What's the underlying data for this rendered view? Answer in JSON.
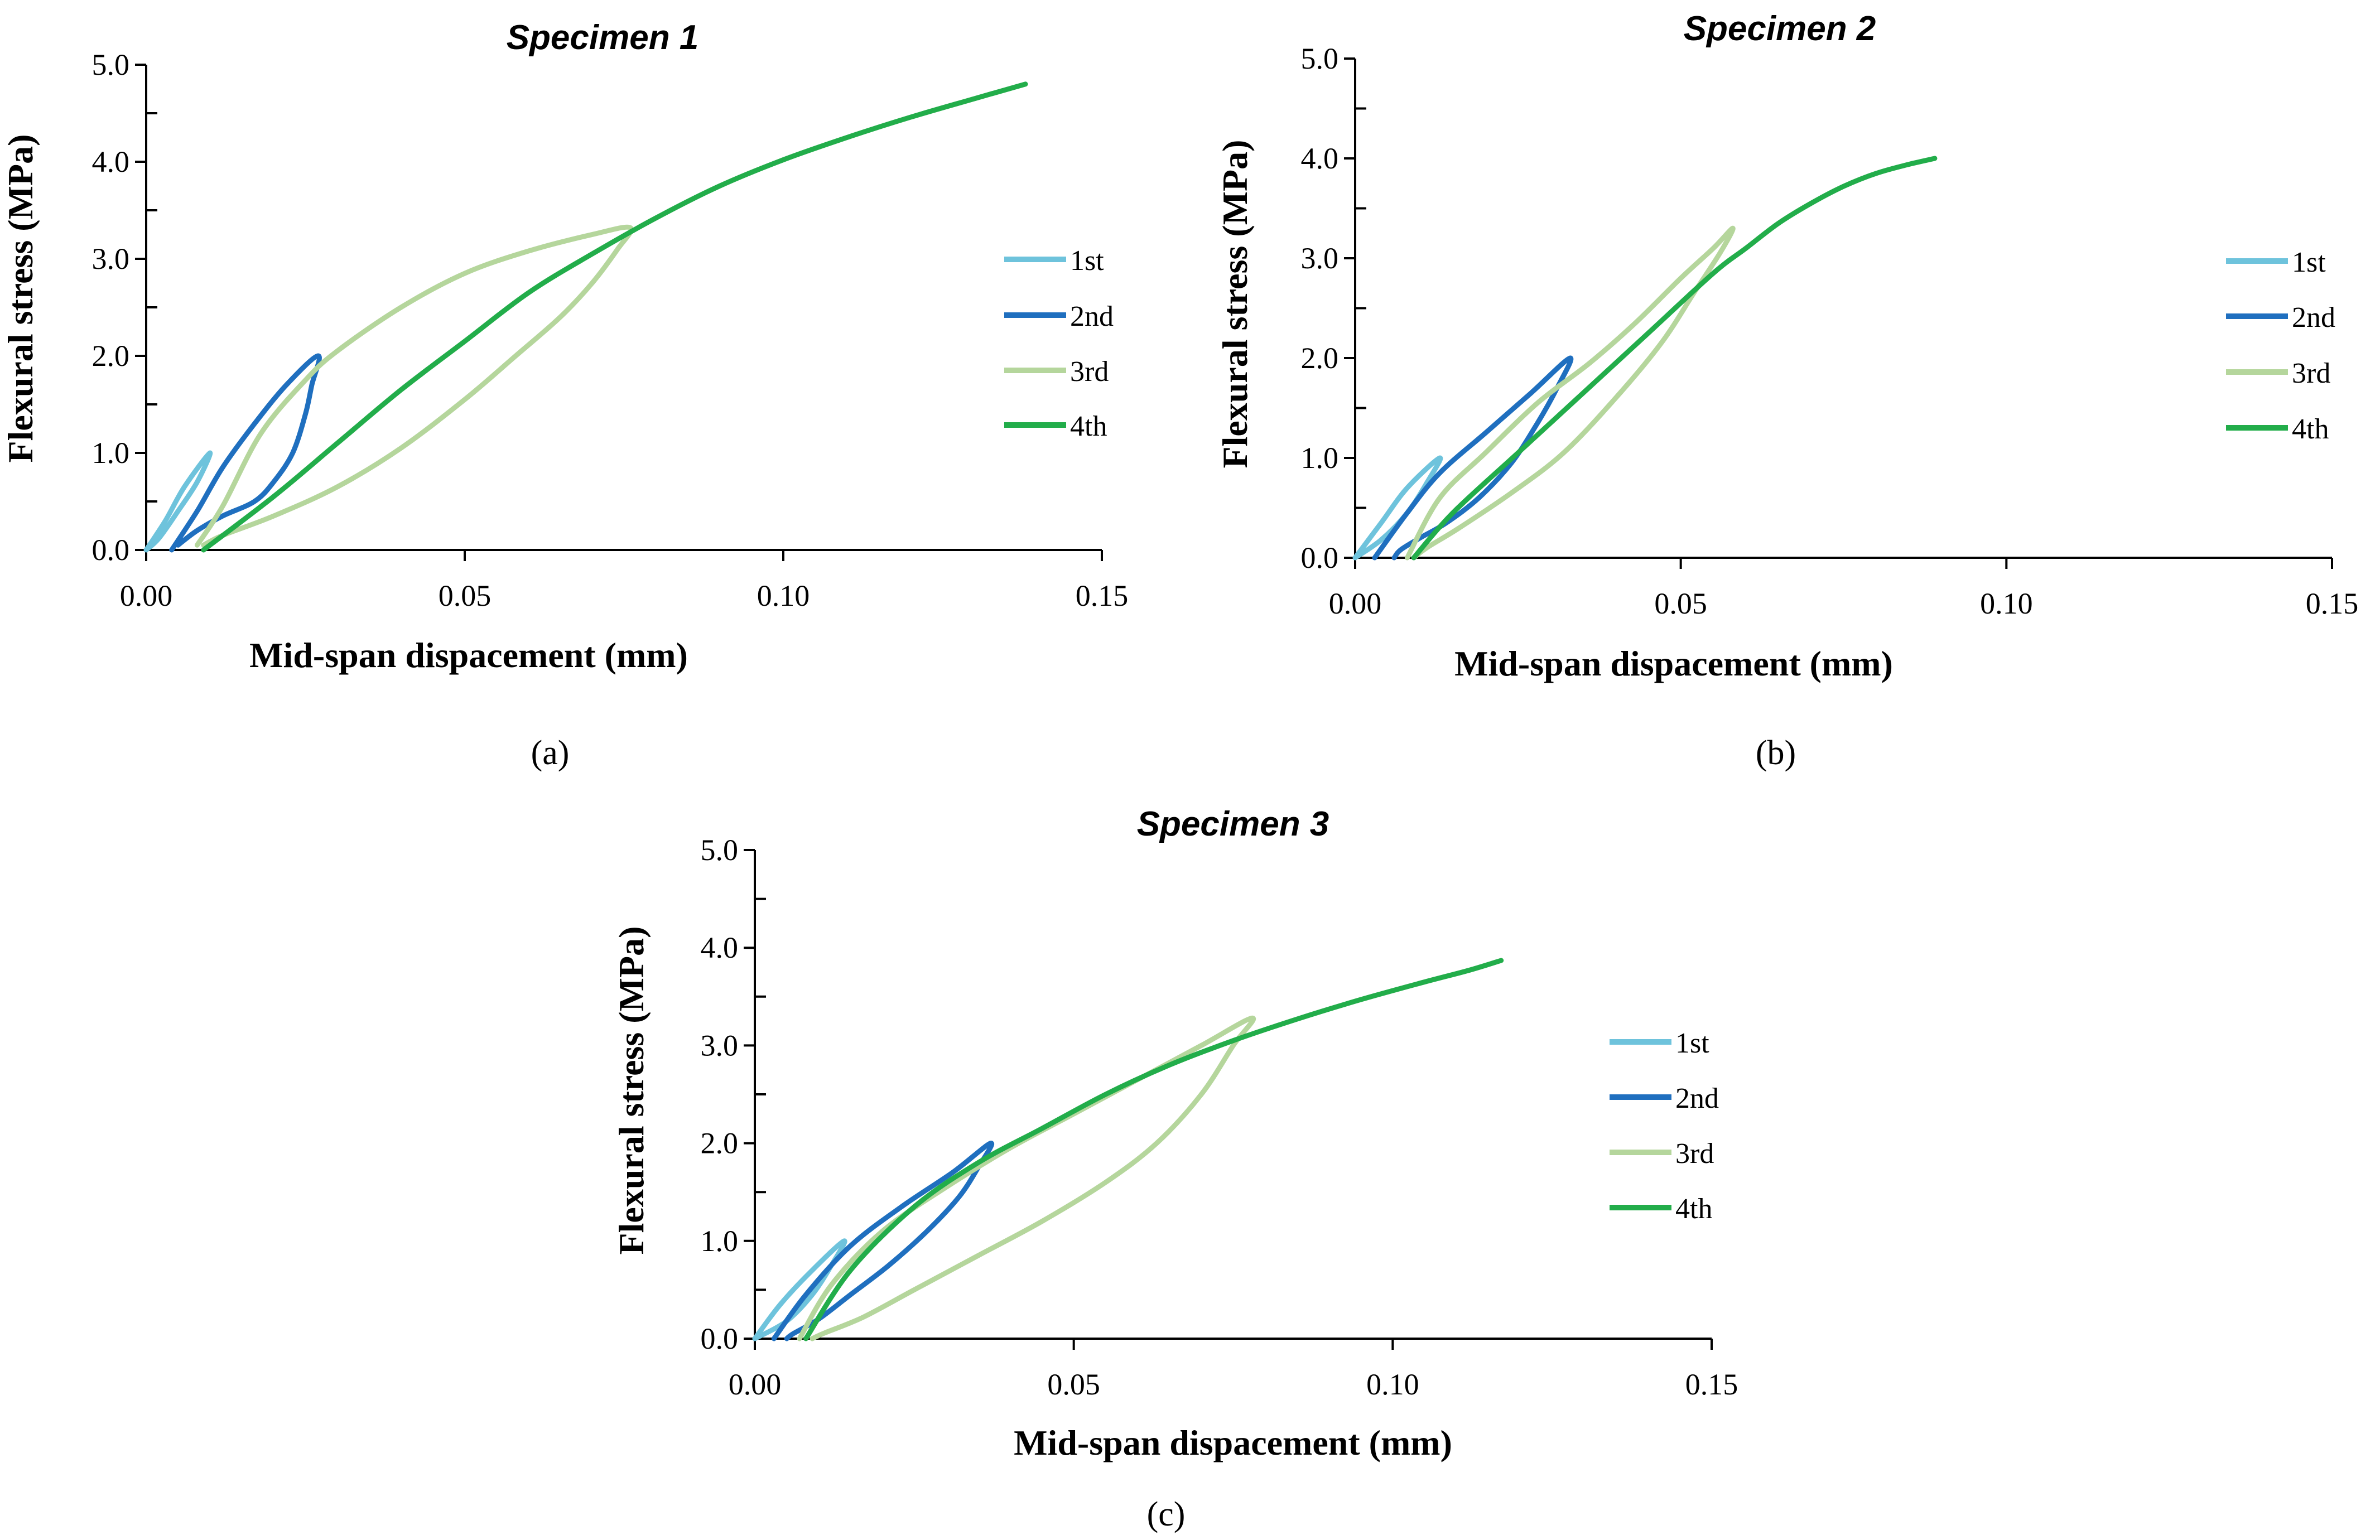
{
  "figure": {
    "panel_labels": [
      "(a)",
      "(b)",
      "(c)"
    ]
  },
  "chart_data": [
    {
      "type": "line",
      "title": "Specimen 1",
      "xlabel": "Mid-span dispacement (mm)",
      "ylabel": "Flexural stress (MPa)",
      "xlim": [
        0,
        0.15
      ],
      "ylim": [
        0,
        5
      ],
      "xticks": [
        "0.00",
        "0.05",
        "0.10",
        "0.15"
      ],
      "yticks": [
        "0.0",
        "1.0",
        "2.0",
        "3.0",
        "4.0",
        "5.0"
      ],
      "grid": false,
      "legend_position": "right",
      "series": [
        {
          "name": "1st",
          "color": "#6ec3dc",
          "points": [
            [
              0,
              0
            ],
            [
              0.003,
              0.3
            ],
            [
              0.006,
              0.65
            ],
            [
              0.01,
              1.0
            ],
            [
              0.008,
              0.7
            ],
            [
              0.005,
              0.4
            ],
            [
              0.002,
              0.12
            ],
            [
              0,
              0
            ]
          ]
        },
        {
          "name": "2nd",
          "color": "#1f6fbf",
          "points": [
            [
              0.004,
              0
            ],
            [
              0.008,
              0.4
            ],
            [
              0.012,
              0.85
            ],
            [
              0.017,
              1.3
            ],
            [
              0.022,
              1.7
            ],
            [
              0.027,
              2.0
            ],
            [
              0.026,
              1.7
            ],
            [
              0.025,
              1.4
            ],
            [
              0.023,
              1.0
            ],
            [
              0.02,
              0.7
            ],
            [
              0.017,
              0.5
            ],
            [
              0.012,
              0.35
            ],
            [
              0.008,
              0.2
            ],
            [
              0.005,
              0.05
            ]
          ]
        },
        {
          "name": "3rd",
          "color": "#b5d69c",
          "points": [
            [
              0.008,
              0.05
            ],
            [
              0.012,
              0.45
            ],
            [
              0.018,
              1.2
            ],
            [
              0.025,
              1.75
            ],
            [
              0.03,
              2.05
            ],
            [
              0.04,
              2.5
            ],
            [
              0.05,
              2.85
            ],
            [
              0.06,
              3.08
            ],
            [
              0.07,
              3.25
            ],
            [
              0.076,
              3.32
            ],
            [
              0.074,
              3.1
            ],
            [
              0.07,
              2.75
            ],
            [
              0.065,
              2.4
            ],
            [
              0.058,
              2.0
            ],
            [
              0.05,
              1.55
            ],
            [
              0.04,
              1.05
            ],
            [
              0.03,
              0.65
            ],
            [
              0.02,
              0.35
            ],
            [
              0.012,
              0.15
            ],
            [
              0.009,
              0.05
            ]
          ]
        },
        {
          "name": "4th",
          "color": "#22ad4a",
          "points": [
            [
              0.009,
              0
            ],
            [
              0.02,
              0.55
            ],
            [
              0.03,
              1.1
            ],
            [
              0.04,
              1.65
            ],
            [
              0.05,
              2.15
            ],
            [
              0.06,
              2.65
            ],
            [
              0.07,
              3.05
            ],
            [
              0.08,
              3.42
            ],
            [
              0.09,
              3.75
            ],
            [
              0.1,
              4.02
            ],
            [
              0.11,
              4.25
            ],
            [
              0.12,
              4.46
            ],
            [
              0.13,
              4.65
            ],
            [
              0.138,
              4.8
            ]
          ]
        }
      ]
    },
    {
      "type": "line",
      "title": "Specimen 2",
      "xlabel": "Mid-span dispacement (mm)",
      "ylabel": "Flexural stress (MPa)",
      "xlim": [
        0,
        0.15
      ],
      "ylim": [
        0,
        5
      ],
      "xticks": [
        "0.00",
        "0.05",
        "0.10",
        "0.15"
      ],
      "yticks": [
        "0.0",
        "1.0",
        "2.0",
        "3.0",
        "4.0",
        "5.0"
      ],
      "grid": false,
      "legend_position": "right",
      "series": [
        {
          "name": "1st",
          "color": "#6ec3dc",
          "points": [
            [
              0,
              0
            ],
            [
              0.004,
              0.35
            ],
            [
              0.008,
              0.7
            ],
            [
              0.013,
              1.0
            ],
            [
              0.011,
              0.75
            ],
            [
              0.008,
              0.45
            ],
            [
              0.004,
              0.18
            ],
            [
              0,
              0
            ]
          ]
        },
        {
          "name": "2nd",
          "color": "#1f6fbf",
          "points": [
            [
              0.003,
              0
            ],
            [
              0.008,
              0.45
            ],
            [
              0.013,
              0.85
            ],
            [
              0.02,
              1.25
            ],
            [
              0.027,
              1.65
            ],
            [
              0.033,
              2.0
            ],
            [
              0.031,
              1.7
            ],
            [
              0.028,
              1.35
            ],
            [
              0.024,
              0.95
            ],
            [
              0.019,
              0.6
            ],
            [
              0.014,
              0.35
            ],
            [
              0.01,
              0.2
            ],
            [
              0.007,
              0.08
            ],
            [
              0.006,
              0
            ]
          ]
        },
        {
          "name": "3rd",
          "color": "#b5d69c",
          "points": [
            [
              0.008,
              0
            ],
            [
              0.013,
              0.6
            ],
            [
              0.02,
              1.05
            ],
            [
              0.028,
              1.55
            ],
            [
              0.036,
              1.95
            ],
            [
              0.043,
              2.35
            ],
            [
              0.05,
              2.8
            ],
            [
              0.055,
              3.1
            ],
            [
              0.058,
              3.3
            ],
            [
              0.056,
              3.05
            ],
            [
              0.052,
              2.65
            ],
            [
              0.047,
              2.15
            ],
            [
              0.04,
              1.6
            ],
            [
              0.032,
              1.05
            ],
            [
              0.024,
              0.65
            ],
            [
              0.016,
              0.3
            ],
            [
              0.011,
              0.1
            ],
            [
              0.009,
              0
            ]
          ]
        },
        {
          "name": "4th",
          "color": "#22ad4a",
          "points": [
            [
              0.009,
              0
            ],
            [
              0.015,
              0.45
            ],
            [
              0.025,
              1.05
            ],
            [
              0.035,
              1.65
            ],
            [
              0.045,
              2.25
            ],
            [
              0.055,
              2.85
            ],
            [
              0.06,
              3.1
            ],
            [
              0.065,
              3.35
            ],
            [
              0.07,
              3.55
            ],
            [
              0.075,
              3.72
            ],
            [
              0.08,
              3.85
            ],
            [
              0.085,
              3.94
            ],
            [
              0.089,
              4.0
            ]
          ]
        }
      ]
    },
    {
      "type": "line",
      "title": "Specimen 3",
      "xlabel": "Mid-span dispacement (mm)",
      "ylabel": "Flexural stress (MPa)",
      "xlim": [
        0,
        0.15
      ],
      "ylim": [
        0,
        5
      ],
      "xticks": [
        "0.00",
        "0.05",
        "0.10",
        "0.15"
      ],
      "yticks": [
        "0.0",
        "1.0",
        "2.0",
        "3.0",
        "4.0",
        "5.0"
      ],
      "grid": false,
      "legend_position": "right",
      "series": [
        {
          "name": "1st",
          "color": "#6ec3dc",
          "points": [
            [
              0,
              0
            ],
            [
              0.004,
              0.35
            ],
            [
              0.009,
              0.7
            ],
            [
              0.014,
              1.0
            ],
            [
              0.012,
              0.75
            ],
            [
              0.009,
              0.45
            ],
            [
              0.005,
              0.18
            ],
            [
              0,
              0
            ]
          ]
        },
        {
          "name": "2nd",
          "color": "#1f6fbf",
          "points": [
            [
              0.003,
              0
            ],
            [
              0.008,
              0.45
            ],
            [
              0.015,
              0.95
            ],
            [
              0.023,
              1.35
            ],
            [
              0.031,
              1.7
            ],
            [
              0.037,
              2.0
            ],
            [
              0.035,
              1.75
            ],
            [
              0.032,
              1.45
            ],
            [
              0.027,
              1.1
            ],
            [
              0.021,
              0.75
            ],
            [
              0.015,
              0.45
            ],
            [
              0.01,
              0.2
            ],
            [
              0.006,
              0.05
            ],
            [
              0.005,
              0
            ]
          ]
        },
        {
          "name": "3rd",
          "color": "#b5d69c",
          "points": [
            [
              0.007,
              0
            ],
            [
              0.012,
              0.55
            ],
            [
              0.02,
              1.1
            ],
            [
              0.03,
              1.55
            ],
            [
              0.04,
              1.95
            ],
            [
              0.05,
              2.3
            ],
            [
              0.06,
              2.65
            ],
            [
              0.07,
              3.0
            ],
            [
              0.078,
              3.28
            ],
            [
              0.075,
              3.0
            ],
            [
              0.07,
              2.5
            ],
            [
              0.063,
              2.0
            ],
            [
              0.055,
              1.6
            ],
            [
              0.045,
              1.2
            ],
            [
              0.035,
              0.85
            ],
            [
              0.025,
              0.5
            ],
            [
              0.017,
              0.22
            ],
            [
              0.011,
              0.06
            ],
            [
              0.009,
              0
            ]
          ]
        },
        {
          "name": "4th",
          "color": "#22ad4a",
          "points": [
            [
              0.008,
              0
            ],
            [
              0.015,
              0.7
            ],
            [
              0.025,
              1.35
            ],
            [
              0.035,
              1.8
            ],
            [
              0.045,
              2.15
            ],
            [
              0.055,
              2.5
            ],
            [
              0.065,
              2.8
            ],
            [
              0.075,
              3.05
            ],
            [
              0.085,
              3.27
            ],
            [
              0.095,
              3.47
            ],
            [
              0.105,
              3.65
            ],
            [
              0.112,
              3.77
            ],
            [
              0.117,
              3.87
            ]
          ]
        }
      ]
    }
  ]
}
